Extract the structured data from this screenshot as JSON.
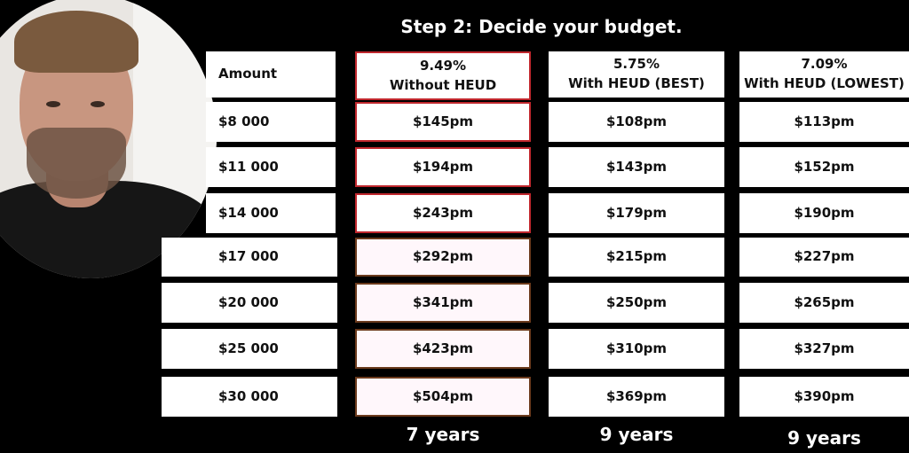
{
  "title": "Step 2: Decide your budget.",
  "columns": [
    {
      "rate": "",
      "label": "Amount"
    },
    {
      "rate": "9.49%",
      "label": "Without HEUD"
    },
    {
      "rate": "5.75%",
      "label": "With HEUD (BEST)"
    },
    {
      "rate": "7.09%",
      "label": "With HEUD (LOWEST)"
    }
  ],
  "rows": [
    [
      "$8 000",
      "$145pm",
      "$108pm",
      "$113pm"
    ],
    [
      "$11 000",
      "$194pm",
      "$143pm",
      "$152pm"
    ],
    [
      "$14 000",
      "$243pm",
      "$179pm",
      "$190pm"
    ],
    [
      "$17 000",
      "$292pm",
      "$215pm",
      "$227pm"
    ],
    [
      "$20 000",
      "$341pm",
      "$250pm",
      "$265pm"
    ],
    [
      "$25 000",
      "$423pm",
      "$310pm",
      "$327pm"
    ],
    [
      "$30 000",
      "$504pm",
      "$369pm",
      "$390pm"
    ]
  ],
  "terms": [
    "7 years",
    "9 years",
    "9 years"
  ],
  "colors": {
    "highlight_border": "#c0272d",
    "background": "#000000",
    "cell": "#ffffff"
  }
}
